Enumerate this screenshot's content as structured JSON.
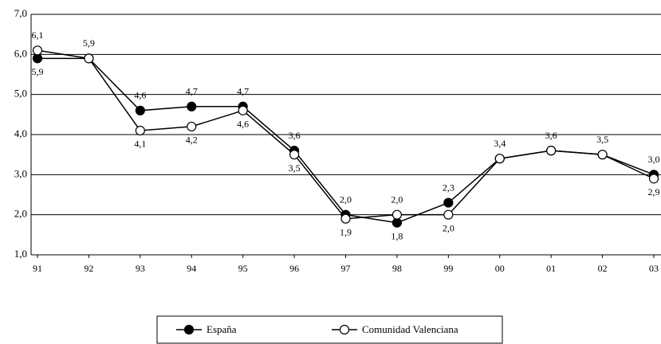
{
  "chart_data": {
    "type": "line",
    "categories": [
      "91",
      "92",
      "93",
      "94",
      "95",
      "96",
      "97",
      "98",
      "99",
      "00",
      "01",
      "02",
      "03"
    ],
    "series": [
      {
        "name": "España",
        "color": "#000000",
        "marker_fill": "#000000",
        "values": [
          5.9,
          5.9,
          4.6,
          4.7,
          4.7,
          3.6,
          2.0,
          1.8,
          2.3,
          3.4,
          3.6,
          3.5,
          3.0
        ],
        "value_labels": [
          "5,9",
          "5,9",
          "4,6",
          "4,7",
          "4,7",
          "3,6",
          "2,0",
          "1,8",
          "2,3",
          "3,4",
          "3,6",
          "3,5",
          "3,0"
        ]
      },
      {
        "name": "Comunidad Valenciana",
        "color": "#000000",
        "marker_fill": "#ffffff",
        "values": [
          6.1,
          5.9,
          4.1,
          4.2,
          4.6,
          3.5,
          1.9,
          2.0,
          2.0,
          3.4,
          3.6,
          3.5,
          2.9
        ],
        "value_labels": [
          "6,1",
          null,
          "4,1",
          "4,2",
          "4,6",
          "3,5",
          "1,9",
          "2,0",
          "2,0",
          null,
          null,
          null,
          "2,9"
        ]
      }
    ],
    "ylim": [
      1.0,
      7.0
    ],
    "yticks": [
      {
        "value": 1.0,
        "label": "1,0"
      },
      {
        "value": 2.0,
        "label": "2,0"
      },
      {
        "value": 3.0,
        "label": "3,0"
      },
      {
        "value": 4.0,
        "label": "4,0"
      },
      {
        "value": 5.0,
        "label": "5,0"
      },
      {
        "value": 6.0,
        "label": "6,0"
      },
      {
        "value": 7.0,
        "label": "7,0"
      }
    ],
    "grid": true,
    "legend": "bottom"
  }
}
